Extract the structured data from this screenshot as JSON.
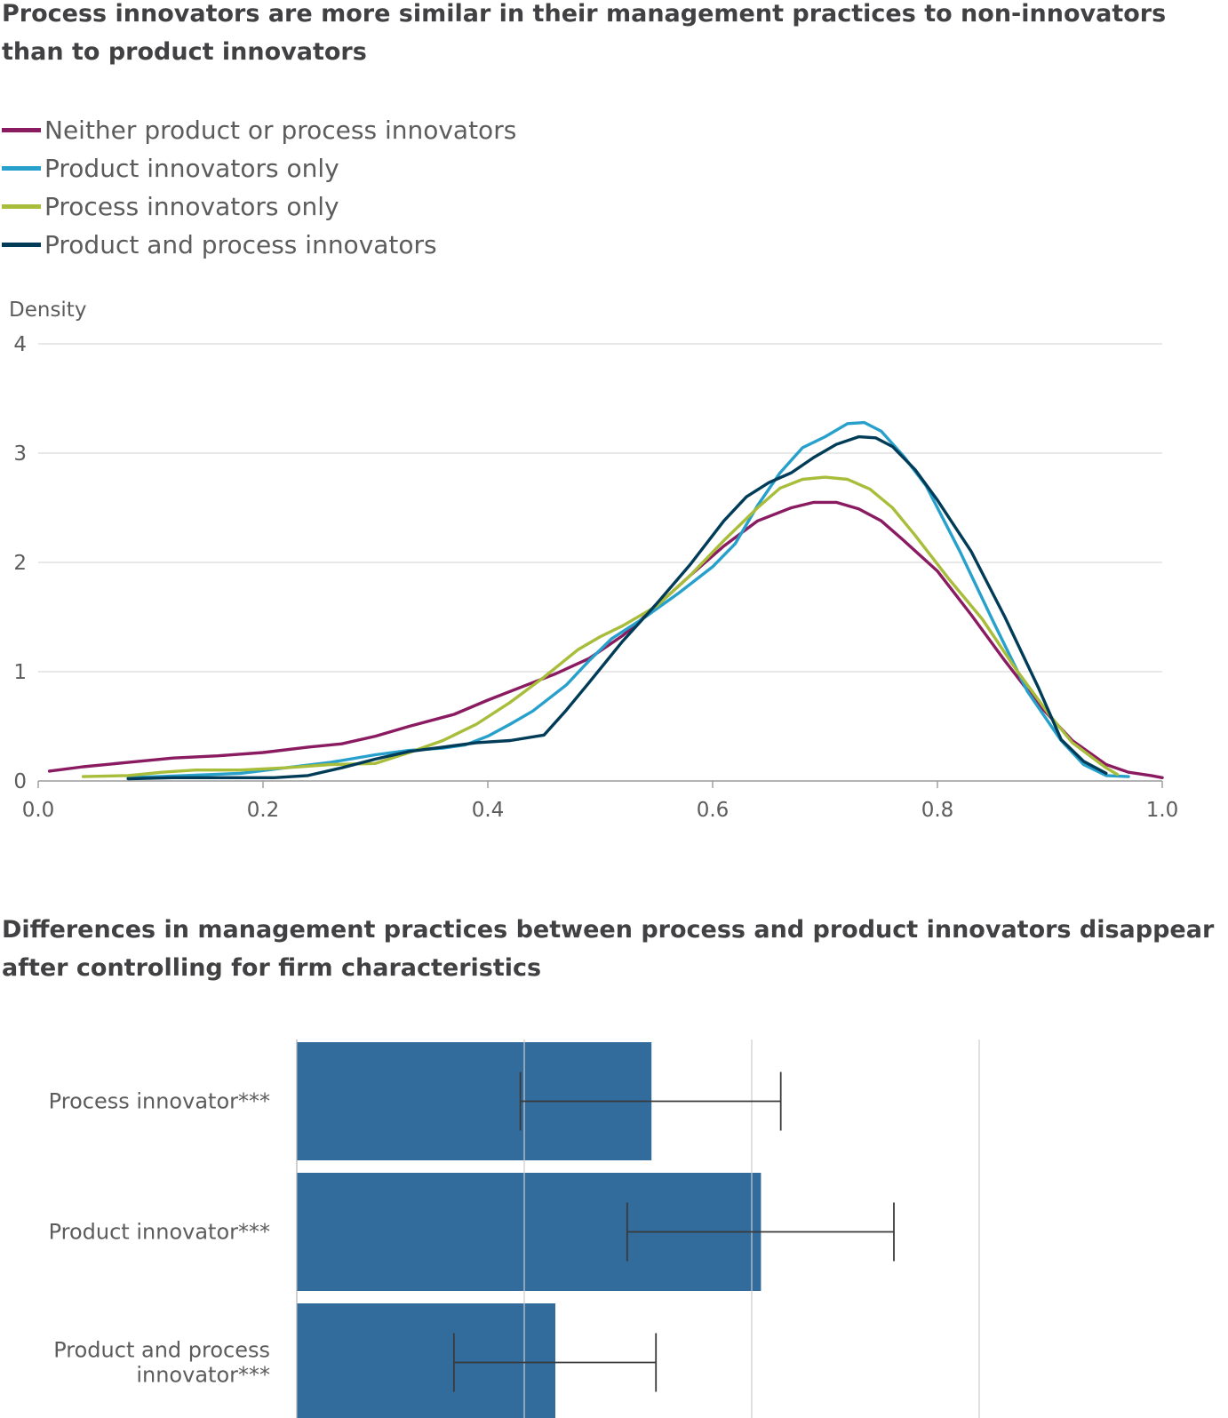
{
  "charts": {
    "density": {
      "title": "Process innovators are more similar in their management practices to non-innovators than to product innovators"
    },
    "coef": {
      "title": "Differences in management practices between process and product innovators disappear after controlling for firm characteristics"
    }
  },
  "chart_data": [
    {
      "type": "line",
      "title": "Process innovators are more similar in their management practices to non-innovators than to product innovators",
      "ylabel": "Density",
      "xlabel": "",
      "xlim": [
        0,
        1
      ],
      "ylim": [
        0,
        4
      ],
      "x_ticks": [
        "0.0",
        "0.2",
        "0.4",
        "0.6",
        "0.8",
        "1.0"
      ],
      "y_ticks": [
        "0",
        "1",
        "2",
        "3",
        "4"
      ],
      "grid": true,
      "legend": "top-left",
      "series": [
        {
          "name": "Neither product or process innovators",
          "color": "#8a1b61",
          "points": [
            [
              0.01,
              0.09
            ],
            [
              0.04,
              0.13
            ],
            [
              0.08,
              0.17
            ],
            [
              0.12,
              0.21
            ],
            [
              0.16,
              0.23
            ],
            [
              0.2,
              0.26
            ],
            [
              0.24,
              0.31
            ],
            [
              0.27,
              0.34
            ],
            [
              0.3,
              0.41
            ],
            [
              0.33,
              0.5
            ],
            [
              0.37,
              0.61
            ],
            [
              0.4,
              0.74
            ],
            [
              0.43,
              0.86
            ],
            [
              0.46,
              0.98
            ],
            [
              0.49,
              1.12
            ],
            [
              0.52,
              1.33
            ],
            [
              0.55,
              1.6
            ],
            [
              0.58,
              1.88
            ],
            [
              0.61,
              2.15
            ],
            [
              0.64,
              2.38
            ],
            [
              0.67,
              2.5
            ],
            [
              0.69,
              2.55
            ],
            [
              0.71,
              2.55
            ],
            [
              0.73,
              2.49
            ],
            [
              0.75,
              2.38
            ],
            [
              0.77,
              2.2
            ],
            [
              0.8,
              1.92
            ],
            [
              0.83,
              1.52
            ],
            [
              0.86,
              1.1
            ],
            [
              0.89,
              0.7
            ],
            [
              0.92,
              0.37
            ],
            [
              0.95,
              0.15
            ],
            [
              0.97,
              0.08
            ],
            [
              0.99,
              0.05
            ],
            [
              1.0,
              0.03
            ]
          ]
        },
        {
          "name": "Product innovators only",
          "color": "#27a0cc",
          "points": [
            [
              0.08,
              0.03
            ],
            [
              0.13,
              0.05
            ],
            [
              0.18,
              0.07
            ],
            [
              0.22,
              0.12
            ],
            [
              0.26,
              0.17
            ],
            [
              0.3,
              0.24
            ],
            [
              0.33,
              0.28
            ],
            [
              0.36,
              0.3
            ],
            [
              0.38,
              0.33
            ],
            [
              0.4,
              0.41
            ],
            [
              0.42,
              0.52
            ],
            [
              0.44,
              0.64
            ],
            [
              0.47,
              0.88
            ],
            [
              0.49,
              1.1
            ],
            [
              0.51,
              1.3
            ],
            [
              0.54,
              1.5
            ],
            [
              0.57,
              1.72
            ],
            [
              0.6,
              1.96
            ],
            [
              0.62,
              2.17
            ],
            [
              0.64,
              2.52
            ],
            [
              0.66,
              2.82
            ],
            [
              0.68,
              3.05
            ],
            [
              0.7,
              3.15
            ],
            [
              0.72,
              3.27
            ],
            [
              0.735,
              3.28
            ],
            [
              0.75,
              3.2
            ],
            [
              0.77,
              2.97
            ],
            [
              0.79,
              2.7
            ],
            [
              0.82,
              2.1
            ],
            [
              0.85,
              1.45
            ],
            [
              0.88,
              0.82
            ],
            [
              0.91,
              0.37
            ],
            [
              0.93,
              0.15
            ],
            [
              0.95,
              0.05
            ],
            [
              0.97,
              0.04
            ]
          ]
        },
        {
          "name": "Process innovators only",
          "color": "#a8bd3a",
          "points": [
            [
              0.04,
              0.04
            ],
            [
              0.08,
              0.05
            ],
            [
              0.11,
              0.08
            ],
            [
              0.14,
              0.1
            ],
            [
              0.18,
              0.1
            ],
            [
              0.22,
              0.12
            ],
            [
              0.26,
              0.15
            ],
            [
              0.3,
              0.16
            ],
            [
              0.33,
              0.26
            ],
            [
              0.36,
              0.37
            ],
            [
              0.39,
              0.52
            ],
            [
              0.42,
              0.72
            ],
            [
              0.45,
              0.95
            ],
            [
              0.48,
              1.2
            ],
            [
              0.5,
              1.32
            ],
            [
              0.52,
              1.42
            ],
            [
              0.55,
              1.6
            ],
            [
              0.58,
              1.88
            ],
            [
              0.61,
              2.2
            ],
            [
              0.64,
              2.5
            ],
            [
              0.66,
              2.68
            ],
            [
              0.68,
              2.76
            ],
            [
              0.7,
              2.78
            ],
            [
              0.72,
              2.76
            ],
            [
              0.74,
              2.67
            ],
            [
              0.76,
              2.5
            ],
            [
              0.78,
              2.25
            ],
            [
              0.81,
              1.85
            ],
            [
              0.84,
              1.48
            ],
            [
              0.87,
              1.02
            ],
            [
              0.9,
              0.6
            ],
            [
              0.92,
              0.35
            ],
            [
              0.95,
              0.12
            ],
            [
              0.96,
              0.06
            ]
          ]
        },
        {
          "name": "Product and process innovators",
          "color": "#003c57",
          "points": [
            [
              0.08,
              0.02
            ],
            [
              0.12,
              0.03
            ],
            [
              0.17,
              0.03
            ],
            [
              0.21,
              0.03
            ],
            [
              0.24,
              0.05
            ],
            [
              0.27,
              0.12
            ],
            [
              0.3,
              0.2
            ],
            [
              0.33,
              0.27
            ],
            [
              0.36,
              0.31
            ],
            [
              0.39,
              0.35
            ],
            [
              0.42,
              0.37
            ],
            [
              0.45,
              0.42
            ],
            [
              0.47,
              0.65
            ],
            [
              0.49,
              0.9
            ],
            [
              0.52,
              1.28
            ],
            [
              0.55,
              1.62
            ],
            [
              0.58,
              1.98
            ],
            [
              0.61,
              2.38
            ],
            [
              0.63,
              2.6
            ],
            [
              0.65,
              2.73
            ],
            [
              0.67,
              2.82
            ],
            [
              0.69,
              2.96
            ],
            [
              0.71,
              3.08
            ],
            [
              0.73,
              3.15
            ],
            [
              0.745,
              3.14
            ],
            [
              0.76,
              3.06
            ],
            [
              0.78,
              2.85
            ],
            [
              0.8,
              2.57
            ],
            [
              0.83,
              2.1
            ],
            [
              0.86,
              1.5
            ],
            [
              0.89,
              0.85
            ],
            [
              0.91,
              0.38
            ],
            [
              0.93,
              0.18
            ],
            [
              0.95,
              0.07
            ]
          ]
        }
      ]
    },
    {
      "type": "bar",
      "orientation": "horizontal",
      "title": "Differences in management practices between process and product innovators disappear after controlling for firm characteristics",
      "categories": [
        "Process innovator***",
        "Product innovator***",
        "Product and process innovator***"
      ],
      "values": [
        0.0395,
        0.0517,
        0.0288
      ],
      "error_low": [
        0.0249,
        0.0368,
        0.0175
      ],
      "error_high": [
        0.0539,
        0.0665,
        0.04
      ],
      "xlim": [
        0,
        0.076
      ],
      "grid": true,
      "color": "#206095"
    }
  ]
}
